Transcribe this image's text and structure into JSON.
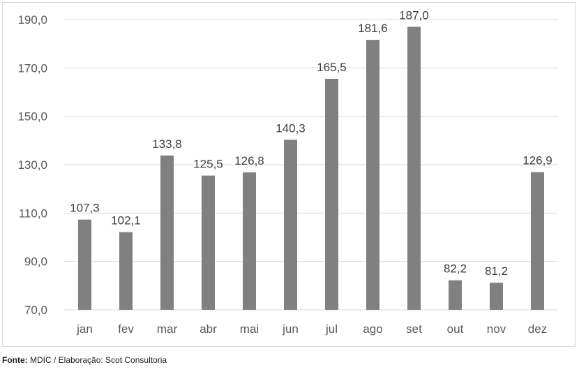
{
  "chart_data": {
    "type": "bar",
    "categories": [
      "jan",
      "fev",
      "mar",
      "abr",
      "mai",
      "jun",
      "jul",
      "ago",
      "set",
      "out",
      "nov",
      "dez"
    ],
    "values": [
      107.3,
      102.1,
      133.8,
      125.5,
      126.8,
      140.3,
      165.5,
      181.6,
      187.0,
      82.2,
      81.2,
      126.9
    ],
    "value_labels": [
      "107,3",
      "102,1",
      "133,8",
      "125,5",
      "126,8",
      "140,3",
      "165,5",
      "181,6",
      "187,0",
      "82,2",
      "81,2",
      "126,9"
    ],
    "y_ticks": [
      70,
      90,
      110,
      130,
      150,
      170,
      190
    ],
    "y_tick_labels": [
      "70,0",
      "90,0",
      "110,0",
      "130,0",
      "150,0",
      "170,0",
      "190,0"
    ],
    "ylim": [
      70,
      190
    ],
    "grid": true,
    "legend": "none",
    "bar_color": "#808080",
    "grid_color": "#d9d9d9"
  },
  "source": {
    "label": "Fonte:",
    "text": " MDIC / Elaboração: Scot Consultoria"
  }
}
